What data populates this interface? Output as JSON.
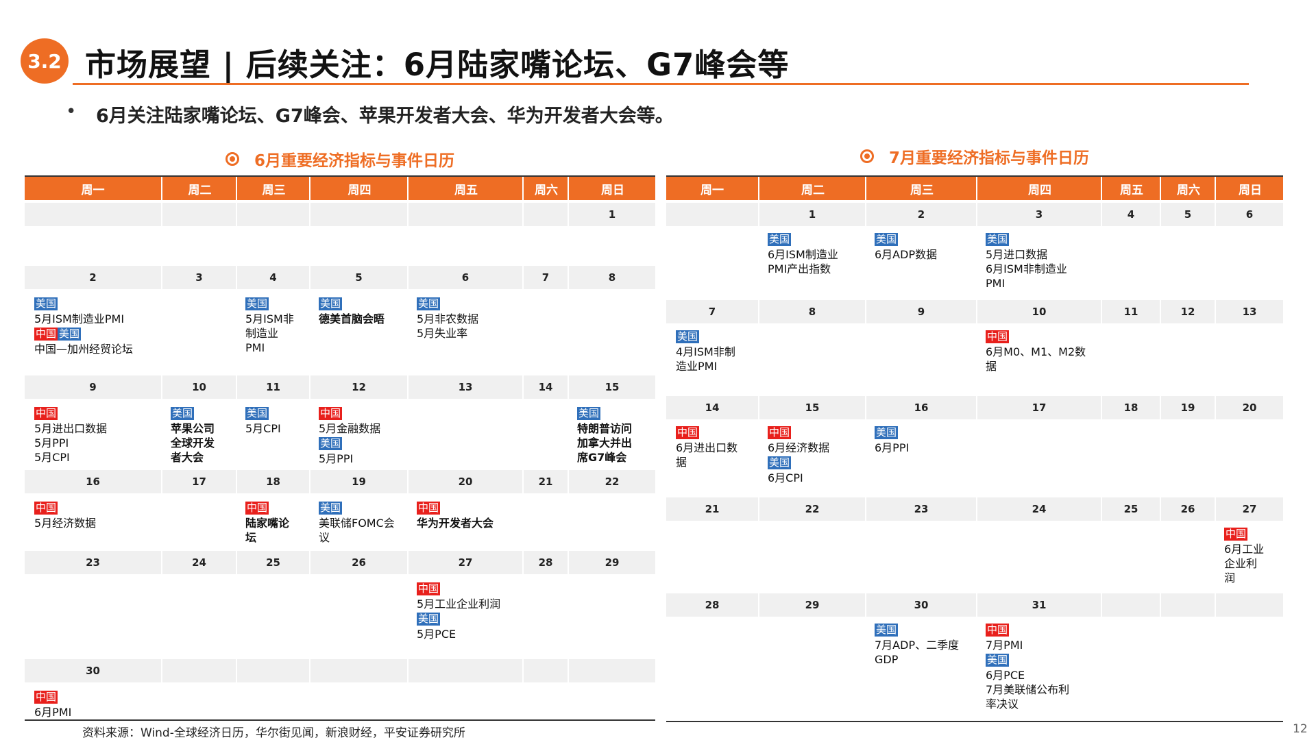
{
  "badge": "3.2",
  "title": "市场展望 | 后续关注：6月陆家嘴论坛、G7峰会等",
  "bullet": "6月关注陆家嘴论坛、G7峰会、苹果开发者大会、华为开发者大会等。",
  "weekdays": [
    "周一",
    "周二",
    "周三",
    "周四",
    "周五",
    "周六",
    "周日"
  ],
  "june": {
    "title": "6月重要经济指标与事件日历",
    "weeks": [
      {
        "days": [
          "",
          "",
          "",
          "",
          "",
          "",
          "1"
        ],
        "cells": [
          [],
          [],
          [],
          [],
          [],
          [],
          []
        ]
      },
      {
        "days": [
          "2",
          "3",
          "4",
          "5",
          "6",
          "7",
          "8"
        ],
        "cells": [
          [
            {
              "tag": "美国",
              "c": "us"
            },
            {
              "t": "5月ISM制造业PMI"
            },
            {
              "tags": [
                {
                  "tag": "中国",
                  "c": "cn"
                },
                {
                  "tag": "美国",
                  "c": "us"
                }
              ]
            },
            {
              "t": "中国—加州经贸论坛"
            }
          ],
          [],
          [
            {
              "tag": "美国",
              "c": "us"
            },
            {
              "t": "5月ISM非"
            },
            {
              "t": "制造业"
            },
            {
              "t": "PMI"
            }
          ],
          [
            {
              "tag": "美国",
              "c": "us"
            },
            {
              "t": "德美首脑会晤",
              "b": true
            }
          ],
          [
            {
              "tag": "美国",
              "c": "us"
            },
            {
              "t": "5月非农数据"
            },
            {
              "t": "5月失业率"
            }
          ],
          [],
          []
        ]
      },
      {
        "days": [
          "9",
          "10",
          "11",
          "12",
          "13",
          "14",
          "15"
        ],
        "cells": [
          [
            {
              "tag": "中国",
              "c": "cn"
            },
            {
              "t": "5月进出口数据"
            },
            {
              "t": "5月PPI"
            },
            {
              "t": "5月CPI"
            }
          ],
          [
            {
              "tag": "美国",
              "c": "us"
            },
            {
              "t": "苹果公司",
              "b": true
            },
            {
              "t": "全球开发",
              "b": true
            },
            {
              "t": "者大会",
              "b": true
            }
          ],
          [
            {
              "tag": "美国",
              "c": "us"
            },
            {
              "t": "5月CPI"
            }
          ],
          [
            {
              "tag": "中国",
              "c": "cn"
            },
            {
              "t": "5月金融数据"
            },
            {
              "tag": "美国",
              "c": "us"
            },
            {
              "t": "5月PPI"
            }
          ],
          [],
          [],
          [
            {
              "tag": "美国",
              "c": "us"
            },
            {
              "t": "特朗普访问",
              "b": true
            },
            {
              "t": "加拿大并出",
              "b": true
            },
            {
              "t": "席G7峰会",
              "b": true
            }
          ]
        ]
      },
      {
        "days": [
          "16",
          "17",
          "18",
          "19",
          "20",
          "21",
          "22"
        ],
        "cells": [
          [
            {
              "tag": "中国",
              "c": "cn"
            },
            {
              "t": "5月经济数据"
            }
          ],
          [],
          [
            {
              "tag": "中国",
              "c": "cn"
            },
            {
              "t": "陆家嘴论",
              "b": true
            },
            {
              "t": "坛",
              "b": true
            }
          ],
          [
            {
              "tag": "美国",
              "c": "us"
            },
            {
              "t": "美联储FOMC会"
            },
            {
              "t": "议"
            }
          ],
          [
            {
              "tag": "中国",
              "c": "cn"
            },
            {
              "t": "华为开发者大会",
              "b": true
            }
          ],
          [],
          []
        ]
      },
      {
        "days": [
          "23",
          "24",
          "25",
          "26",
          "27",
          "28",
          "29"
        ],
        "cells": [
          [],
          [],
          [],
          [],
          [
            {
              "tag": "中国",
              "c": "cn"
            },
            {
              "t": "5月工业企业利润"
            },
            {
              "tag": "美国",
              "c": "us"
            },
            {
              "t": "5月PCE"
            }
          ],
          [],
          []
        ]
      },
      {
        "days": [
          "30",
          "",
          "",
          "",
          "",
          "",
          ""
        ],
        "cells": [
          [
            {
              "tag": "中国",
              "c": "cn"
            },
            {
              "t": "6月PMI"
            }
          ],
          [],
          [],
          [],
          [],
          [],
          []
        ]
      }
    ]
  },
  "july": {
    "title": "7月重要经济指标与事件日历",
    "weeks": [
      {
        "days": [
          "",
          "1",
          "2",
          "3",
          "4",
          "5",
          "6"
        ],
        "cells": [
          [],
          [
            {
              "tag": "美国",
              "c": "us"
            },
            {
              "t": "6月ISM制造业"
            },
            {
              "t": "PMI产出指数"
            }
          ],
          [
            {
              "tag": "美国",
              "c": "us"
            },
            {
              "t": "6月ADP数据"
            }
          ],
          [
            {
              "tag": "美国",
              "c": "us"
            },
            {
              "t": "5月进口数据"
            },
            {
              "t": "6月ISM非制造业"
            },
            {
              "t": "PMI"
            }
          ],
          [],
          [],
          []
        ]
      },
      {
        "days": [
          "7",
          "8",
          "9",
          "10",
          "11",
          "12",
          "13"
        ],
        "cells": [
          [
            {
              "tag": "美国",
              "c": "us"
            },
            {
              "t": "4月ISM非制"
            },
            {
              "t": "造业PMI"
            }
          ],
          [],
          [],
          [
            {
              "tag": "中国",
              "c": "cn"
            },
            {
              "t": "6月M0、M1、M2数"
            },
            {
              "t": "据"
            }
          ],
          [],
          [],
          []
        ]
      },
      {
        "days": [
          "14",
          "15",
          "16",
          "17",
          "18",
          "19",
          "20"
        ],
        "cells": [
          [
            {
              "tag": "中国",
              "c": "cn"
            },
            {
              "t": "6月进出口数"
            },
            {
              "t": "据"
            }
          ],
          [
            {
              "tag": "中国",
              "c": "cn"
            },
            {
              "t": "6月经济数据"
            },
            {
              "tag": "美国",
              "c": "us"
            },
            {
              "t": "6月CPI"
            }
          ],
          [
            {
              "tag": "美国",
              "c": "us"
            },
            {
              "t": "6月PPI"
            }
          ],
          [],
          [],
          [],
          []
        ]
      },
      {
        "days": [
          "21",
          "22",
          "23",
          "24",
          "25",
          "26",
          "27"
        ],
        "cells": [
          [],
          [],
          [],
          [],
          [],
          [],
          [
            {
              "tag": "中国",
              "c": "cn"
            },
            {
              "t": "6月工业"
            },
            {
              "t": "企业利"
            },
            {
              "t": "润"
            }
          ]
        ]
      },
      {
        "days": [
          "28",
          "29",
          "30",
          "31",
          "",
          "",
          ""
        ],
        "cells": [
          [],
          [],
          [
            {
              "tag": "美国",
              "c": "us"
            },
            {
              "t": "7月ADP、二季度"
            },
            {
              "t": "GDP"
            }
          ],
          [
            {
              "tag": "中国",
              "c": "cn"
            },
            {
              "t": "7月PMI"
            },
            {
              "tag": "美国",
              "c": "us"
            },
            {
              "t": "6月PCE"
            },
            {
              "t": "7月美联储公布利"
            },
            {
              "t": "率决议"
            }
          ],
          [],
          [],
          []
        ]
      }
    ]
  },
  "source": "资料来源：Wind-全球经济日历，华尔街见闻，新浪财经，平安证券研究所",
  "page_number": "12"
}
